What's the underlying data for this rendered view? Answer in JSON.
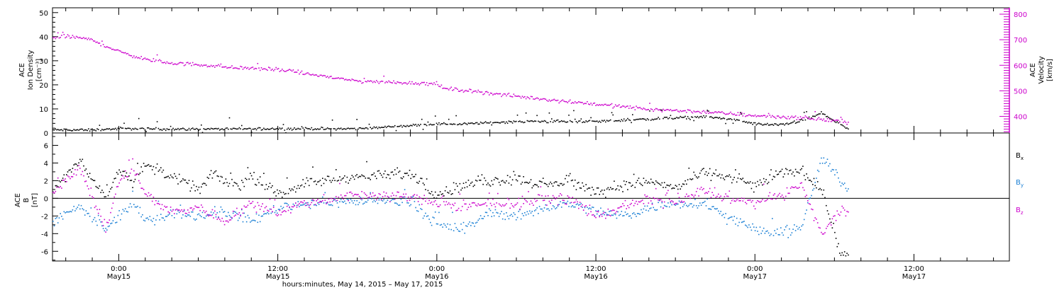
{
  "chart_data": [
    {
      "type": "scatter",
      "panel": "top",
      "ylabel_left": [
        "ACE",
        "Ion Density",
        "[cm⁻³]"
      ],
      "ylabel_right": [
        "ACE",
        "Velocity",
        "[km/s]"
      ],
      "y_left_ticks": [
        "0",
        "10",
        "20",
        "30",
        "40",
        "50"
      ],
      "y_right_ticks": [
        "400",
        "500",
        "600",
        "700",
        "800"
      ],
      "ylim_left": [
        0,
        52
      ],
      "ylim_right": [
        335,
        825
      ],
      "x_hours_range": [
        -5,
        67.2
      ],
      "series": [
        {
          "axis": "left",
          "color": "#000000",
          "x": [
            -5,
            -2,
            0,
            6,
            12,
            18,
            24,
            26,
            30,
            36,
            40,
            44,
            46,
            48,
            50,
            52,
            53,
            54,
            55
          ],
          "y": [
            1.5,
            1.5,
            2.0,
            1.8,
            2.0,
            2.0,
            4.0,
            4.0,
            5.0,
            5.0,
            6.0,
            7.0,
            6.0,
            4.0,
            3.5,
            6.0,
            8.5,
            5.0,
            2.0
          ]
        },
        {
          "axis": "right",
          "color": "#cc00cc",
          "x": [
            -5,
            -4,
            -3,
            -2,
            0,
            2,
            4,
            6,
            8,
            12,
            18,
            24,
            24.5,
            26,
            30,
            36,
            40,
            44,
            48,
            52,
            55
          ],
          "y": [
            710,
            715,
            710,
            700,
            655,
            625,
            610,
            605,
            595,
            585,
            540,
            530,
            510,
            505,
            480,
            450,
            430,
            420,
            405,
            395,
            380
          ]
        }
      ]
    },
    {
      "type": "scatter",
      "panel": "bottom",
      "ylabel_left": [
        "ACE",
        "B",
        "[nT]"
      ],
      "y_ticks": [
        "-6",
        "-4",
        "-2",
        "0",
        "2",
        "4",
        "6"
      ],
      "ylim": [
        -7.1,
        7.4
      ],
      "x_hours_range": [
        -5,
        67.2
      ],
      "series": [
        {
          "name": "Bx",
          "color": "#000000",
          "x": [
            -5,
            -3,
            -1,
            0,
            1,
            2,
            4,
            6,
            7,
            8,
            9,
            10,
            12,
            14,
            18,
            22,
            24,
            26,
            28,
            30,
            32,
            34,
            36,
            38,
            40,
            42,
            44,
            46,
            48,
            50,
            51.5,
            53,
            54.5,
            55
          ],
          "y": [
            1.0,
            4.2,
            0.2,
            3.5,
            2.0,
            3.8,
            2.5,
            1.0,
            2.8,
            2.0,
            1.5,
            2.5,
            0.5,
            1.8,
            2.5,
            2.8,
            0.5,
            1.5,
            2.0,
            2.3,
            1.5,
            2.0,
            0.8,
            1.5,
            2.0,
            1.2,
            3.0,
            2.5,
            1.5,
            3.0,
            3.2,
            1.0,
            -6.5,
            -6.0
          ]
        },
        {
          "name": "By",
          "color": "#1a7fd4",
          "x": [
            -5,
            -3,
            -1,
            0,
            1,
            2,
            4,
            6,
            8,
            10,
            12,
            14,
            18,
            22,
            24,
            26,
            28,
            30,
            32,
            34,
            36,
            38,
            40,
            42,
            44,
            46,
            48,
            50,
            51.5,
            53,
            54,
            55
          ],
          "y": [
            -2.5,
            -1.0,
            -3.5,
            -2.0,
            -0.5,
            -2.5,
            -1.5,
            -2.0,
            -1.5,
            -2.5,
            -1.0,
            -0.5,
            -0.3,
            -0.3,
            -3.0,
            -3.5,
            -1.5,
            -2.0,
            -1.0,
            -0.5,
            -1.5,
            -2.0,
            -1.0,
            -0.5,
            -0.5,
            -2.0,
            -3.5,
            -4.0,
            -3.2,
            4.5,
            3.0,
            1.0
          ]
        },
        {
          "name": "Bz",
          "color": "#cc00cc",
          "x": [
            -5,
            -3,
            -1,
            0,
            1,
            2,
            4,
            6,
            8,
            10,
            12,
            14,
            18,
            22,
            24,
            26,
            28,
            30,
            32,
            34,
            36,
            38,
            40,
            42,
            44,
            46,
            48,
            50,
            51.5,
            53,
            54,
            55
          ],
          "y": [
            1.0,
            3.5,
            -3.5,
            2.0,
            3.5,
            0.5,
            -1.5,
            -1.0,
            -2.5,
            -0.5,
            -1.5,
            -0.5,
            0.5,
            0.2,
            -0.5,
            -1.0,
            -0.5,
            -0.5,
            0.0,
            0.0,
            -2.0,
            -1.0,
            0.0,
            -0.5,
            1.0,
            0.0,
            -0.5,
            0.5,
            1.5,
            -4.0,
            -2.0,
            -1.0
          ]
        }
      ],
      "zero_line": true
    }
  ],
  "legend": {
    "bx": "B",
    "bx_sub": "x",
    "by": "B",
    "by_sub": "y",
    "bz": "B",
    "bz_sub": "z"
  },
  "x_axis": {
    "ticks": [
      {
        "h": 0,
        "time": "0:00",
        "day": "May15"
      },
      {
        "h": 12,
        "time": "12:00",
        "day": "May15"
      },
      {
        "h": 24,
        "time": "0:00",
        "day": "May16"
      },
      {
        "h": 36,
        "time": "12:00",
        "day": "May16"
      },
      {
        "h": 48,
        "time": "0:00",
        "day": "May17"
      },
      {
        "h": 60,
        "time": "12:00",
        "day": "May17"
      }
    ],
    "label": "hours:minutes, May 14, 2015 – May 17, 2015"
  },
  "colors": {
    "black": "#000000",
    "magenta": "#cc00cc",
    "blue": "#1a7fd4"
  }
}
